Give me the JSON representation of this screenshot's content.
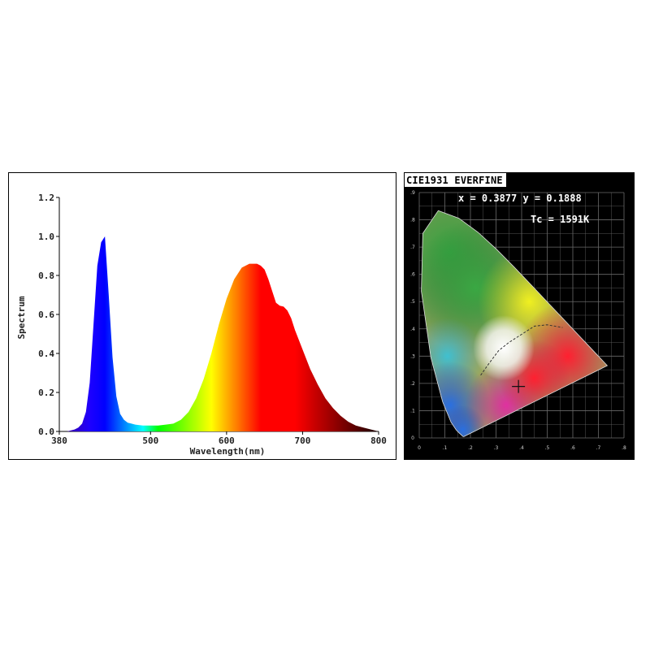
{
  "chart_data": [
    {
      "type": "area",
      "title": "",
      "xlabel": "Wavelength(nm)",
      "ylabel": "Spectrum",
      "xlim": [
        380,
        800
      ],
      "ylim": [
        0,
        1.2
      ],
      "x_ticks": [
        "380",
        "500",
        "600",
        "700",
        "800"
      ],
      "y_ticks": [
        "0.0",
        "0.2",
        "0.4",
        "0.6",
        "0.8",
        "1.0",
        "1.2"
      ],
      "fill": "wavelength-colored spectrum",
      "series": [
        {
          "x": [
            380,
            390,
            400,
            405,
            410,
            415,
            420,
            425,
            430,
            435,
            440,
            445,
            450,
            455,
            460,
            465,
            470,
            475,
            480,
            490,
            500,
            510,
            520,
            530,
            540,
            550,
            560,
            570,
            580,
            590,
            600,
            610,
            620,
            630,
            640,
            645,
            650,
            655,
            660,
            665,
            670,
            675,
            680,
            685,
            690,
            700,
            710,
            720,
            730,
            740,
            750,
            760,
            770,
            780,
            790,
            800
          ],
          "values": [
            0.0,
            0.0,
            0.01,
            0.02,
            0.04,
            0.1,
            0.25,
            0.55,
            0.85,
            0.97,
            1.0,
            0.7,
            0.38,
            0.18,
            0.09,
            0.06,
            0.045,
            0.04,
            0.035,
            0.03,
            0.03,
            0.03,
            0.035,
            0.04,
            0.06,
            0.1,
            0.17,
            0.27,
            0.4,
            0.55,
            0.68,
            0.78,
            0.84,
            0.86,
            0.86,
            0.85,
            0.83,
            0.78,
            0.72,
            0.66,
            0.645,
            0.64,
            0.62,
            0.58,
            0.52,
            0.42,
            0.32,
            0.24,
            0.17,
            0.12,
            0.08,
            0.05,
            0.03,
            0.02,
            0.01,
            0.0
          ]
        }
      ]
    },
    {
      "type": "scatter",
      "title": "CIE1931 EVERFINE",
      "readout_xy": "x = 0.3877 y = 0.1888",
      "readout_tc": "Tc = 1591K",
      "x_ticks": [
        "0",
        ".1",
        ".2",
        ".3",
        ".4",
        ".5",
        ".6",
        ".7",
        ".8"
      ],
      "y_ticks": [
        "0",
        ".1",
        ".2",
        ".3",
        ".4",
        ".5",
        ".6",
        ".7",
        ".8",
        ".9"
      ],
      "xlim": [
        0,
        0.8
      ],
      "ylim": [
        0,
        0.9
      ],
      "grid": true,
      "marker": {
        "x": 0.3877,
        "y": 0.1888
      },
      "locus": {
        "x": [
          0.1741,
          0.1733,
          0.1714,
          0.1689,
          0.1644,
          0.1566,
          0.144,
          0.1241,
          0.0913,
          0.0454,
          0.0082,
          0.0139,
          0.0743,
          0.1547,
          0.2296,
          0.3016,
          0.3731,
          0.4441,
          0.5125,
          0.5752,
          0.627,
          0.6658,
          0.6915,
          0.7079,
          0.7347
        ],
        "y": [
          0.005,
          0.0048,
          0.0051,
          0.0069,
          0.0109,
          0.0177,
          0.0297,
          0.0578,
          0.1327,
          0.295,
          0.5384,
          0.7502,
          0.8338,
          0.8059,
          0.7543,
          0.6923,
          0.6245,
          0.5547,
          0.4866,
          0.4242,
          0.3725,
          0.334,
          0.3083,
          0.292,
          0.2653
        ]
      }
    }
  ]
}
